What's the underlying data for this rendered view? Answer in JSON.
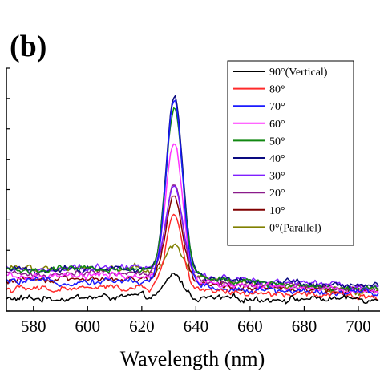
{
  "chart_data": {
    "type": "line",
    "panel_label": "(b)",
    "xlabel": "Wavelength (nm)",
    "ylabel": "",
    "xlim": [
      570,
      708
    ],
    "ylim": [
      0,
      100
    ],
    "x_ticks": [
      580,
      600,
      620,
      640,
      660,
      680,
      700
    ],
    "grid": false,
    "legend_position": "top-right",
    "peak_center_nm": 632,
    "series": [
      {
        "name": "90°(Vertical)",
        "color": "#000000",
        "baseline_start": 5,
        "baseline_end": 5,
        "peak": 15
      },
      {
        "name": "80°",
        "color": "#ff2a2a",
        "baseline_start": 9,
        "baseline_end": 6,
        "peak": 40
      },
      {
        "name": "70°",
        "color": "#1a1aff",
        "baseline_start": 12,
        "baseline_end": 7,
        "peak": 86
      },
      {
        "name": "60°",
        "color": "#ff33ff",
        "baseline_start": 14,
        "baseline_end": 8,
        "peak": 70
      },
      {
        "name": "50°",
        "color": "#118811",
        "baseline_start": 17,
        "baseline_end": 9,
        "peak": 84
      },
      {
        "name": "40°",
        "color": "#0a0a80",
        "baseline_start": 17,
        "baseline_end": 10,
        "peak": 88
      },
      {
        "name": "30°",
        "color": "#7f1fff",
        "baseline_start": 17,
        "baseline_end": 10,
        "peak": 52
      },
      {
        "name": "20°",
        "color": "#8a1a8a",
        "baseline_start": 15,
        "baseline_end": 9,
        "peak": 52
      },
      {
        "name": "10°",
        "color": "#800000",
        "baseline_start": 13,
        "baseline_end": 8,
        "peak": 48
      },
      {
        "name": "0°(Parallel)",
        "color": "#808000",
        "baseline_start": 18,
        "baseline_end": 8,
        "peak": 28
      }
    ]
  }
}
